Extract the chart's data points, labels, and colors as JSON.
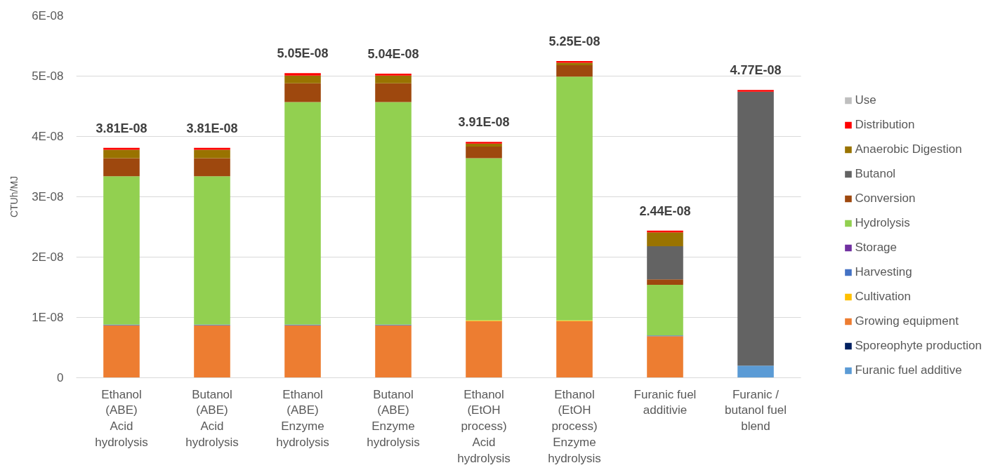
{
  "chart_data": {
    "type": "bar",
    "stacked": true,
    "ylabel": "CTUh/MJ",
    "categories": [
      "Ethanol\n(ABE)\nAcid\nhydrolysis",
      "Butanol\n(ABE)\nAcid\nhydrolysis",
      "Ethanol\n(ABE)\nEnzyme\nhydrolysis",
      "Butanol\n(ABE)\nEnzyme\nhydrolysis",
      "Ethanol\n(EtOH\nprocess)\nAcid\nhydrolysis",
      "Ethanol\n(EtOH\nprocess)\nEnzyme\nhydrolysis",
      "Furanic fuel\nadditivie",
      "Furanic /\nbutanol fuel\nblend"
    ],
    "series": [
      {
        "name": "Furanic fuel additive",
        "color": "#5b9bd5",
        "values": [
          0,
          0,
          0,
          0,
          0,
          0,
          0,
          2e-09
        ]
      },
      {
        "name": "Sporeophyte production",
        "color": "#002060",
        "values": [
          0,
          0,
          0,
          0,
          0,
          0,
          0,
          0
        ]
      },
      {
        "name": "Growing equipment",
        "color": "#ed7d31",
        "values": [
          8.7e-09,
          8.7e-09,
          8.7e-09,
          8.7e-09,
          9.4e-09,
          9.4e-09,
          6.9e-09,
          0
        ]
      },
      {
        "name": "Cultivation",
        "color": "#ffc000",
        "values": [
          0,
          0,
          0,
          0,
          1e-10,
          1e-10,
          0,
          0
        ]
      },
      {
        "name": "Harvesting",
        "color": "#4472c4",
        "values": [
          1e-10,
          1e-10,
          1e-10,
          1e-10,
          0,
          0,
          1e-10,
          0
        ]
      },
      {
        "name": "Storage",
        "color": "#7030a0",
        "values": [
          0,
          0,
          0,
          0,
          0,
          0,
          0,
          0
        ]
      },
      {
        "name": "Hydrolysis",
        "color": "#92d050",
        "values": [
          2.46e-08,
          2.46e-08,
          3.69e-08,
          3.69e-08,
          2.69e-08,
          4.04e-08,
          8.4e-09,
          0
        ]
      },
      {
        "name": "Conversion",
        "color": "#9e480e",
        "values": [
          3e-09,
          3e-09,
          3.1e-09,
          3.1e-09,
          1.9e-09,
          1.9e-09,
          9e-10,
          0
        ]
      },
      {
        "name": "Butanol",
        "color": "#636363",
        "values": [
          0,
          0,
          0,
          0,
          0,
          0,
          5.5e-09,
          4.54e-08
        ]
      },
      {
        "name": "Anaerobic Digestion",
        "color": "#997300",
        "values": [
          1.4e-09,
          1.4e-09,
          1.3e-09,
          1.3e-09,
          5e-10,
          4e-10,
          2.3e-09,
          0
        ]
      },
      {
        "name": "Distribution",
        "color": "#ff0000",
        "values": [
          3e-10,
          3e-10,
          4e-10,
          3e-10,
          3e-10,
          3e-10,
          3e-10,
          3e-10
        ]
      },
      {
        "name": "Use",
        "color": "#bfbfbf",
        "values": [
          0,
          0,
          0,
          0,
          0,
          0,
          0,
          0
        ]
      }
    ],
    "totals": [
      "3.81E-08",
      "3.81E-08",
      "5.05E-08",
      "5.04E-08",
      "3.91E-08",
      "5.25E-08",
      "2.44E-08",
      "4.77E-08"
    ],
    "ylim": [
      0,
      6e-08
    ],
    "yticks": [
      0,
      {
        "value": 1e-08,
        "label": "1E-08"
      },
      {
        "value": 2e-08,
        "label": "2E-08"
      },
      {
        "value": 3e-08,
        "label": "3E-08"
      },
      {
        "value": 4e-08,
        "label": "4E-08"
      },
      {
        "value": 5e-08,
        "label": "5E-08"
      },
      {
        "value": 6e-08,
        "label": "6E-08"
      }
    ],
    "grid": "y",
    "legend": "right"
  }
}
